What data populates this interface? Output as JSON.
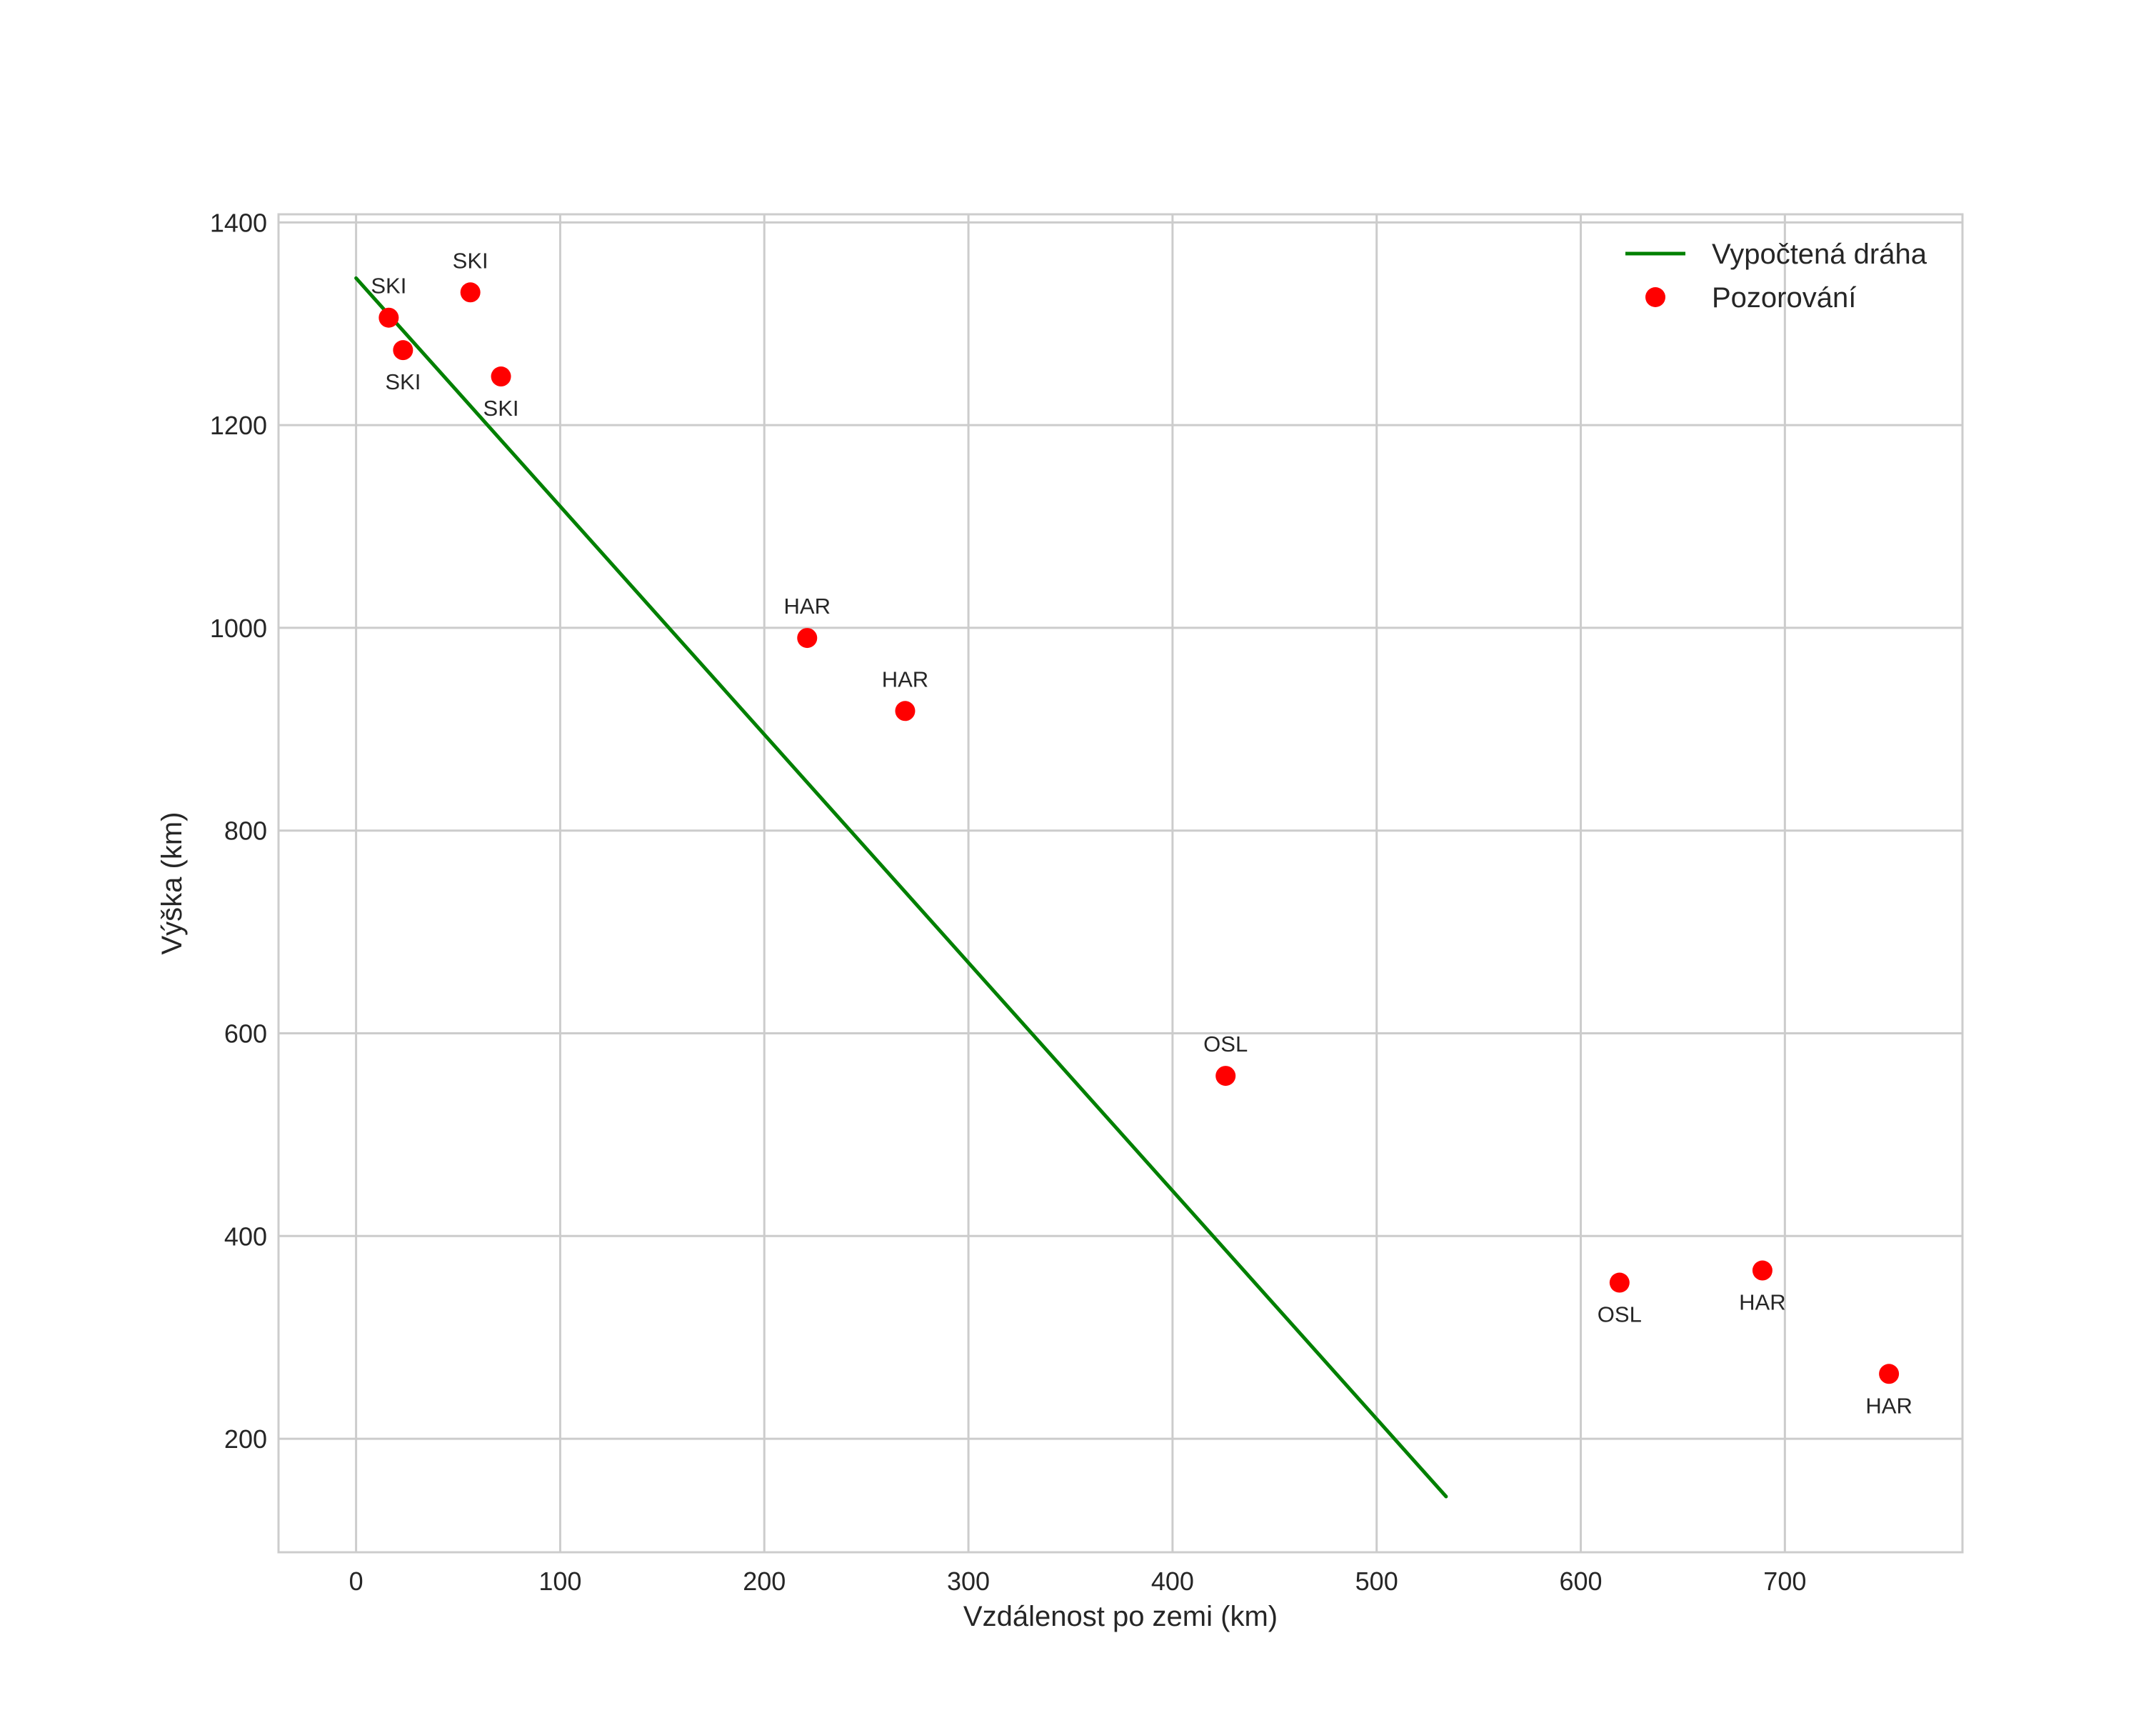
{
  "chart_data": {
    "type": "line+scatter",
    "title": "",
    "xlabel": "Vzdálenost po zemi (km)",
    "ylabel": "Výška (km)",
    "xlim": [
      -38,
      787
    ],
    "ylim": [
      88,
      1408
    ],
    "xticks": [
      0,
      100,
      200,
      300,
      400,
      500,
      600,
      700
    ],
    "yticks": [
      200,
      400,
      600,
      800,
      1000,
      1200,
      1400
    ],
    "grid": true,
    "legend_position": "top-right",
    "line": {
      "name": "Vypočtená dráha",
      "color": "#008000",
      "points": [
        [
          0,
          1345
        ],
        [
          534,
          143
        ]
      ]
    },
    "scatter": {
      "name": "Pozorování",
      "color": "#ff0000",
      "points": [
        {
          "x": 16,
          "y": 1306,
          "label": "SKI",
          "label_pos": "above"
        },
        {
          "x": 23,
          "y": 1274,
          "label": "SKI",
          "label_pos": "below"
        },
        {
          "x": 56,
          "y": 1331,
          "label": "SKI",
          "label_pos": "above"
        },
        {
          "x": 71,
          "y": 1248,
          "label": "SKI",
          "label_pos": "below"
        },
        {
          "x": 221,
          "y": 990,
          "label": "HAR",
          "label_pos": "above"
        },
        {
          "x": 269,
          "y": 918,
          "label": "HAR",
          "label_pos": "above"
        },
        {
          "x": 426,
          "y": 558,
          "label": "OSL",
          "label_pos": "above"
        },
        {
          "x": 619,
          "y": 354,
          "label": "OSL",
          "label_pos": "below"
        },
        {
          "x": 689,
          "y": 366,
          "label": "HAR",
          "label_pos": "below"
        },
        {
          "x": 751,
          "y": 264,
          "label": "HAR",
          "label_pos": "below"
        }
      ]
    }
  }
}
